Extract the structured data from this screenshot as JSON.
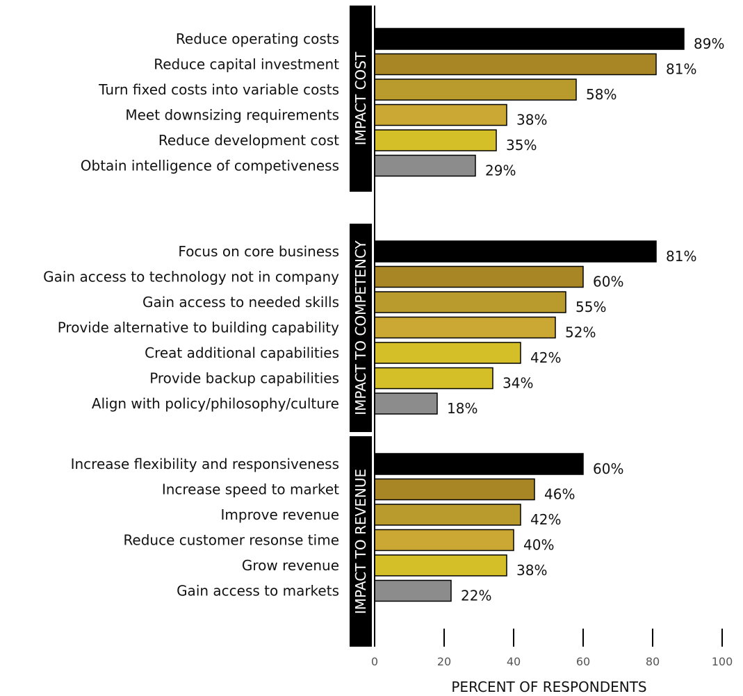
{
  "chart_data": {
    "type": "bar",
    "orientation": "horizontal",
    "xlabel": "PERCENT OF RESPONDENTS",
    "xlim": [
      0,
      100
    ],
    "xticks": [
      0,
      20,
      40,
      60,
      80,
      100
    ],
    "value_suffix": "%",
    "rank_colors": [
      "#000000",
      "#a98625",
      "#b99a2d",
      "#cba733",
      "#d4bf28",
      "#8c8c8c"
    ],
    "groups": [
      {
        "name": "IMPACT COST",
        "bars": [
          {
            "label": "Reduce operating costs",
            "value": 89
          },
          {
            "label": "Reduce capital investment",
            "value": 81
          },
          {
            "label": "Turn fixed costs into variable costs",
            "value": 58
          },
          {
            "label": "Meet downsizing requirements",
            "value": 38
          },
          {
            "label": "Reduce development cost",
            "value": 35
          },
          {
            "label": "Obtain intelligence of competiveness",
            "value": 29
          }
        ]
      },
      {
        "name": "IMPACT TO COMPETENCY",
        "bars": [
          {
            "label": "Focus on core business",
            "value": 81
          },
          {
            "label": "Gain access to technology not in company",
            "value": 60
          },
          {
            "label": "Gain access to needed skills",
            "value": 55
          },
          {
            "label": "Provide alternative to building capability",
            "value": 52
          },
          {
            "label": "Creat additional capabilities",
            "value": 42
          },
          {
            "label": "Provide backup capabilities",
            "value": 34
          },
          {
            "label": "Align with policy/philosophy/culture",
            "value": 18
          }
        ]
      },
      {
        "name": "IMPACT TO REVENUE",
        "bars": [
          {
            "label": "Increase flexibility and responsiveness",
            "value": 60
          },
          {
            "label": "Increase speed to market",
            "value": 46
          },
          {
            "label": "Improve revenue",
            "value": 42
          },
          {
            "label": "Reduce customer resonse time",
            "value": 40
          },
          {
            "label": "Grow revenue",
            "value": 38
          },
          {
            "label": "Gain access to markets",
            "value": 22
          }
        ]
      }
    ]
  }
}
